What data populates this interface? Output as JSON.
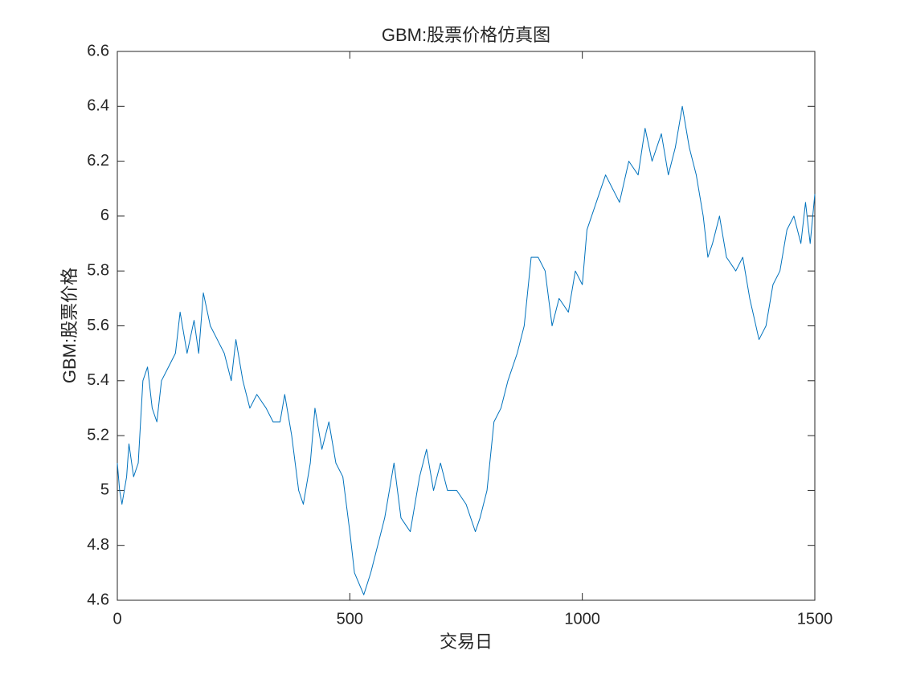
{
  "chart_data": {
    "type": "line",
    "title": "GBM:股票价格仿真图",
    "xlabel": "交易日",
    "ylabel": "GBM:股票价格",
    "x": [
      0,
      5,
      10,
      20,
      25,
      35,
      45,
      55,
      65,
      75,
      85,
      95,
      110,
      125,
      135,
      150,
      165,
      175,
      185,
      200,
      215,
      230,
      245,
      255,
      270,
      285,
      300,
      320,
      335,
      350,
      360,
      375,
      390,
      400,
      415,
      425,
      440,
      455,
      470,
      485,
      500,
      510,
      530,
      545,
      560,
      575,
      585,
      595,
      610,
      630,
      650,
      665,
      680,
      695,
      710,
      730,
      750,
      770,
      780,
      795,
      810,
      825,
      840,
      860,
      875,
      890,
      905,
      920,
      935,
      950,
      970,
      985,
      1000,
      1010,
      1030,
      1050,
      1065,
      1080,
      1100,
      1120,
      1135,
      1150,
      1170,
      1185,
      1200,
      1215,
      1230,
      1245,
      1260,
      1270,
      1280,
      1295,
      1310,
      1330,
      1345,
      1360,
      1380,
      1395,
      1410,
      1425,
      1440,
      1455,
      1470,
      1480,
      1490,
      1500
    ],
    "values": [
      5.1,
      5.0,
      4.95,
      5.05,
      5.17,
      5.05,
      5.1,
      5.4,
      5.45,
      5.3,
      5.25,
      5.4,
      5.45,
      5.5,
      5.65,
      5.5,
      5.62,
      5.5,
      5.72,
      5.6,
      5.55,
      5.5,
      5.4,
      5.55,
      5.4,
      5.3,
      5.35,
      5.3,
      5.25,
      5.25,
      5.35,
      5.2,
      5.0,
      4.95,
      5.1,
      5.3,
      5.15,
      5.25,
      5.1,
      5.05,
      4.85,
      4.7,
      4.62,
      4.7,
      4.8,
      4.9,
      5.0,
      5.1,
      4.9,
      4.85,
      5.05,
      5.15,
      5.0,
      5.1,
      5.0,
      5.0,
      4.95,
      4.85,
      4.9,
      5.0,
      5.25,
      5.3,
      5.4,
      5.5,
      5.6,
      5.85,
      5.85,
      5.8,
      5.6,
      5.7,
      5.65,
      5.8,
      5.75,
      5.95,
      6.05,
      6.15,
      6.1,
      6.05,
      6.2,
      6.15,
      6.32,
      6.2,
      6.3,
      6.15,
      6.25,
      6.4,
      6.25,
      6.15,
      6.0,
      5.85,
      5.9,
      6.0,
      5.85,
      5.8,
      5.85,
      5.7,
      5.55,
      5.6,
      5.75,
      5.8,
      5.95,
      6.0,
      5.9,
      6.05,
      5.9,
      6.08
    ],
    "color": "#0072bd",
    "xlim": [
      0,
      1500
    ],
    "xticks": [
      0,
      500,
      1000,
      1500
    ],
    "ylim": [
      4.6,
      6.6
    ],
    "yticks": [
      4.6,
      4.8,
      5,
      5.2,
      5.4,
      5.6,
      5.8,
      6,
      6.2,
      6.4,
      6.6
    ]
  }
}
